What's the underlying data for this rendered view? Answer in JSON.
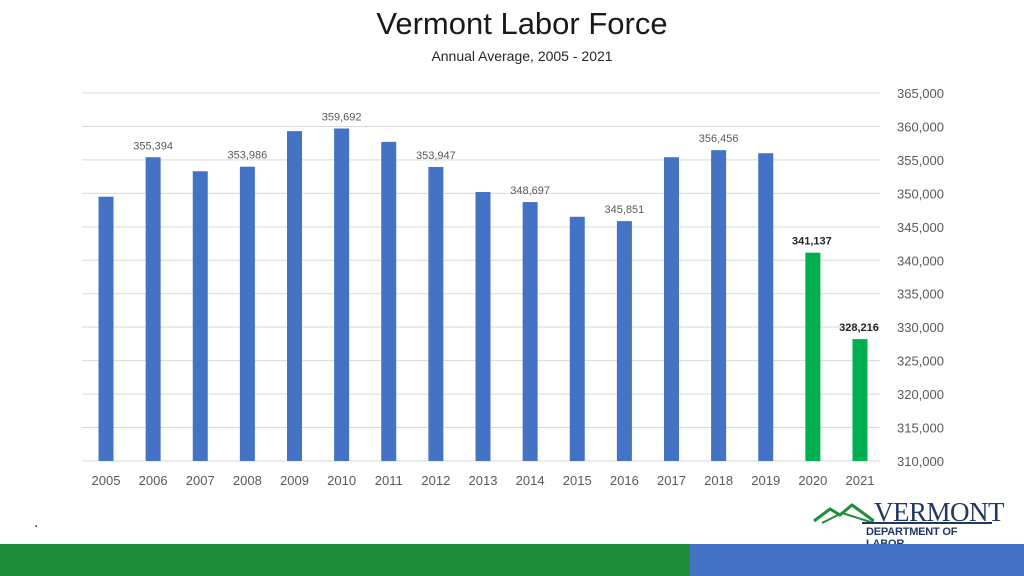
{
  "header": {
    "title": "Vermont Labor Force",
    "subtitle": "Annual Average, 2005 - 2021"
  },
  "chart_data": {
    "type": "bar",
    "title": "Vermont Labor Force",
    "subtitle": "Annual Average, 2005 - 2021",
    "categories": [
      "2005",
      "2006",
      "2007",
      "2008",
      "2009",
      "2010",
      "2011",
      "2012",
      "2013",
      "2014",
      "2015",
      "2016",
      "2017",
      "2018",
      "2019",
      "2020",
      "2021"
    ],
    "values": [
      349500,
      355394,
      353300,
      353986,
      359300,
      359692,
      357700,
      353947,
      350200,
      348697,
      346500,
      345851,
      355400,
      356456,
      356000,
      341137,
      328216
    ],
    "data_labels": [
      "",
      "355,394",
      "",
      "353,986",
      "",
      "359,692",
      "",
      "353,947",
      "",
      "348,697",
      "",
      "345,851",
      "",
      "356,456",
      "",
      "341,137",
      "328,216"
    ],
    "bar_colors": [
      "#4472c4",
      "#4472c4",
      "#4472c4",
      "#4472c4",
      "#4472c4",
      "#4472c4",
      "#4472c4",
      "#4472c4",
      "#4472c4",
      "#4472c4",
      "#4472c4",
      "#4472c4",
      "#4472c4",
      "#4472c4",
      "#4472c4",
      "#00b050",
      "#00b050"
    ],
    "ylim": [
      310000,
      365000
    ],
    "yticks": [
      310000,
      315000,
      320000,
      325000,
      330000,
      335000,
      340000,
      345000,
      350000,
      355000,
      360000,
      365000
    ],
    "ytick_labels": [
      "310,000",
      "315,000",
      "320,000",
      "325,000",
      "330,000",
      "335,000",
      "340,000",
      "345,000",
      "350,000",
      "355,000",
      "360,000",
      "365,000"
    ],
    "yaxis_position": "right",
    "grid": true,
    "xlabel": "",
    "ylabel": ""
  },
  "footer": {
    "dot": ".",
    "logo_text": "VERMONT",
    "logo_subtext": "DEPARTMENT OF LABOR",
    "green_color": "#1e8c3a",
    "blue_color": "#4472c4"
  }
}
